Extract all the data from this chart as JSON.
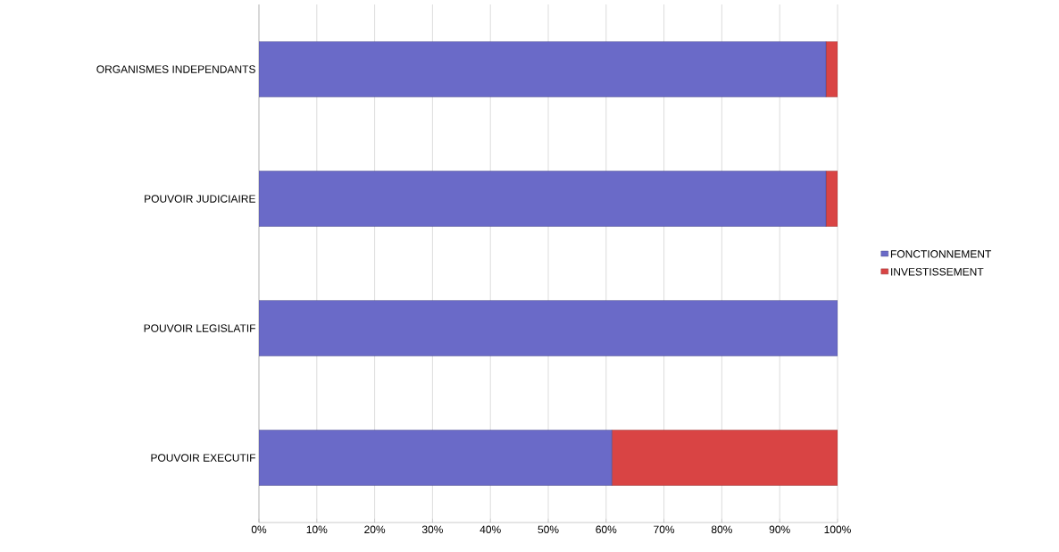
{
  "chart_data": {
    "type": "bar",
    "orientation": "horizontal",
    "stacked": true,
    "categories": [
      "ORGANISMES INDEPENDANTS",
      "POUVOIR JUDICIAIRE",
      "POUVOIR LEGISLATIF",
      "POUVOIR EXECUTIF"
    ],
    "series": [
      {
        "name": "FONCTIONNEMENT",
        "color": "#6a6ac8",
        "values": [
          98,
          98,
          100,
          61
        ]
      },
      {
        "name": "INVESTISSEMENT",
        "color": "#d94444",
        "values": [
          2,
          2,
          0,
          39
        ]
      }
    ],
    "xlim": [
      0,
      100
    ],
    "xticks": [
      {
        "value": 0,
        "label": "0%"
      },
      {
        "value": 10,
        "label": "10%"
      },
      {
        "value": 20,
        "label": "20%"
      },
      {
        "value": 30,
        "label": "30%"
      },
      {
        "value": 40,
        "label": "40%"
      },
      {
        "value": 50,
        "label": "50%"
      },
      {
        "value": 60,
        "label": "60%"
      },
      {
        "value": 70,
        "label": "70%"
      },
      {
        "value": 80,
        "label": "80%"
      },
      {
        "value": 90,
        "label": "90%"
      },
      {
        "value": 100,
        "label": "100%"
      }
    ],
    "grid": "x",
    "legend": "right"
  }
}
